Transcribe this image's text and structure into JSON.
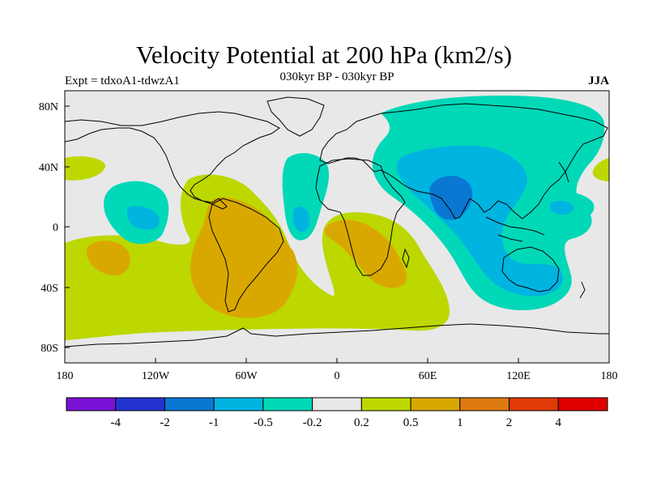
{
  "title": "Velocity Potential at 200 hPa (km2/s)",
  "experiment": "Expt = tdxoA1-tdwzA1",
  "period": "030kyr BP - 030kyr BP",
  "season": "JJA",
  "lat_ticks": [
    "80N",
    "40N",
    "0",
    "40S",
    "80S"
  ],
  "lon_ticks": [
    "180",
    "120W",
    "60W",
    "0",
    "60E",
    "120E",
    "180"
  ],
  "colorbar": {
    "labels": [
      "-4",
      "-2",
      "-1",
      "-0.5",
      "-0.2",
      "0.2",
      "0.5",
      "1",
      "2",
      "4"
    ],
    "colors": [
      "#7a12d6",
      "#2433d0",
      "#0a78d2",
      "#00b4e0",
      "#00d8b8",
      "#e8e8e8",
      "#bcd800",
      "#d9a800",
      "#dd7a10",
      "#df3a08",
      "#e00000"
    ]
  },
  "map_colors": {
    "neutral": "#e8e8e8",
    "weak_positive": "#bcd800",
    "moderate_positive": "#d9a800",
    "weak_negative": "#00d8b8",
    "moderate_negative": "#00b4e0",
    "strong_negative": "#0a78d2"
  }
}
